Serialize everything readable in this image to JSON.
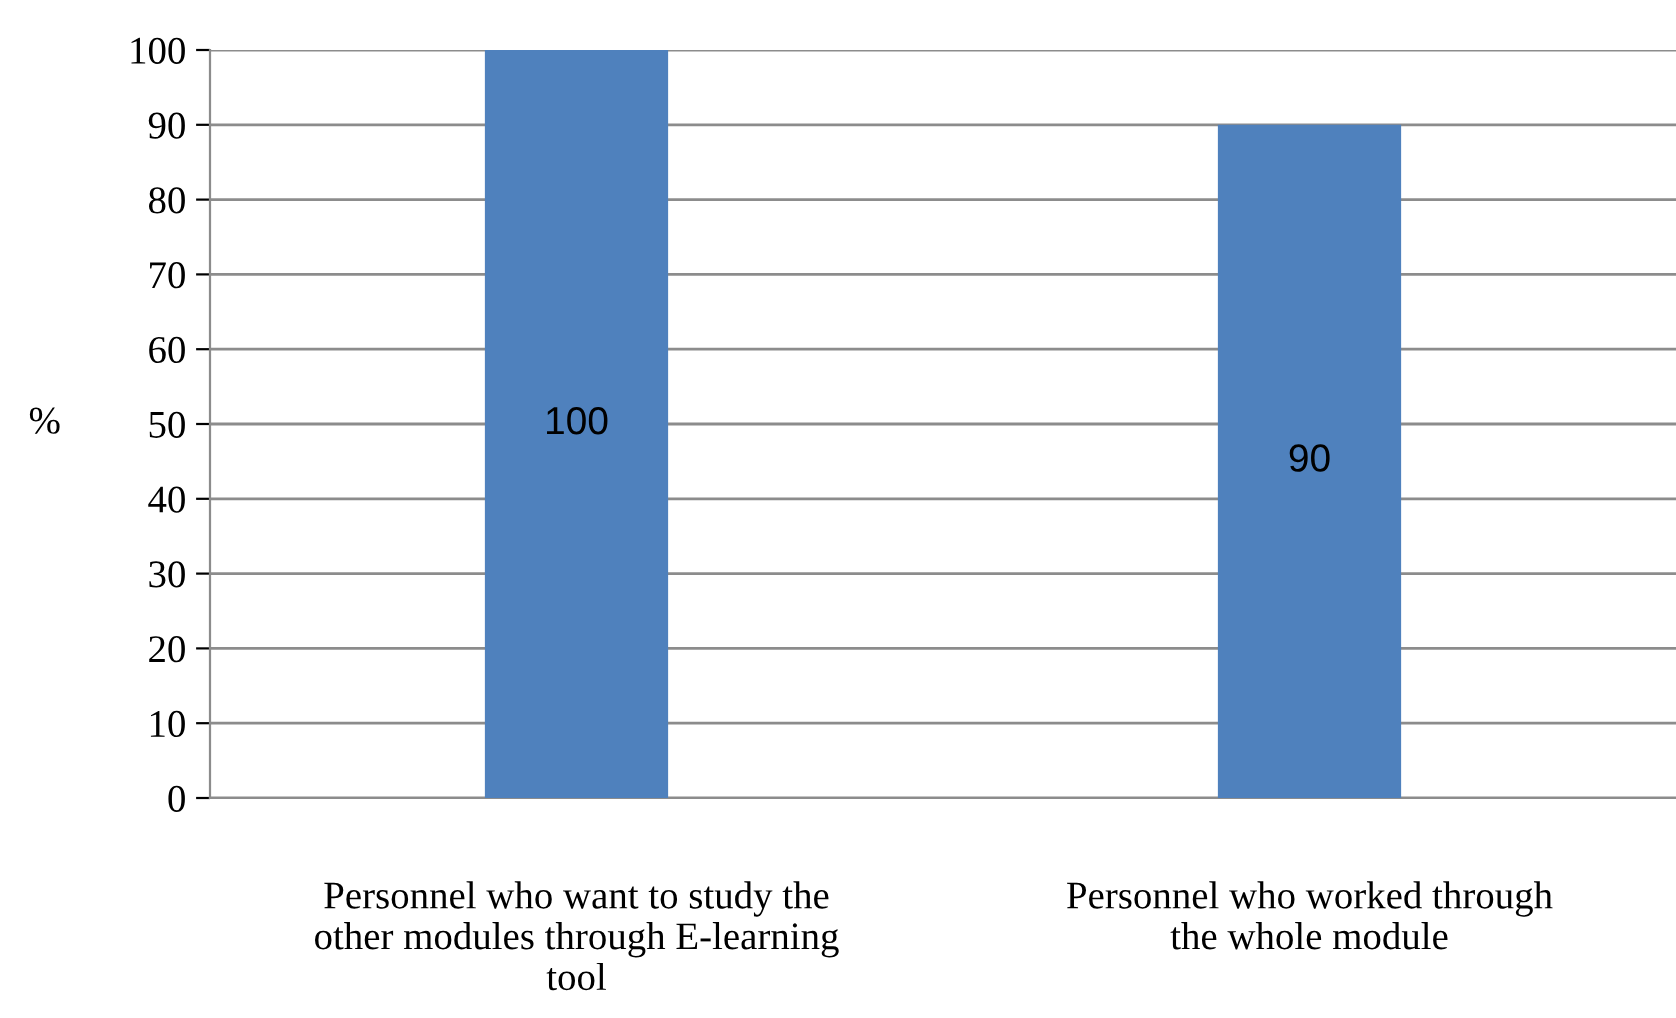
{
  "chart_data": {
    "type": "bar",
    "ylabel": "%",
    "categories": [
      "Personnel who want to study the\nother modules through E-learning\ntool",
      "Personnel who worked through\nthe whole module"
    ],
    "values": [
      100,
      90
    ],
    "color": "#4f81bd",
    "ylim": [
      0,
      100
    ],
    "yticks": [
      0,
      10,
      20,
      30,
      40,
      50,
      60,
      70,
      80,
      90,
      100
    ],
    "grid": "y",
    "data_labels": true,
    "legend": false
  }
}
